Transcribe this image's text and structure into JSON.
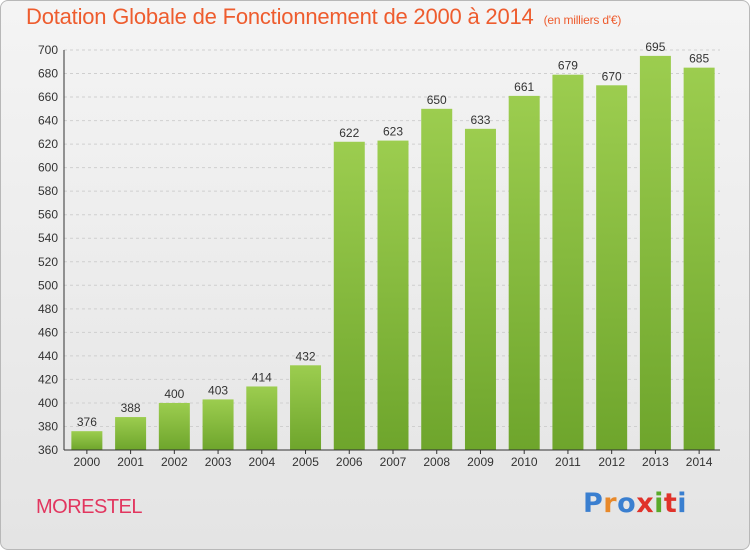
{
  "chart_data": {
    "type": "bar",
    "title": "Dotation Globale de Fonctionnement de 2000 à 2014",
    "subtitle": "(en milliers d'€)",
    "xlabel": "",
    "ylabel": "",
    "categories": [
      "2000",
      "2001",
      "2002",
      "2003",
      "2004",
      "2005",
      "2006",
      "2007",
      "2008",
      "2009",
      "2010",
      "2011",
      "2012",
      "2013",
      "2014"
    ],
    "values": [
      376,
      388,
      400,
      403,
      414,
      432,
      622,
      623,
      650,
      633,
      661,
      679,
      670,
      695,
      685
    ],
    "ylim": [
      360,
      700
    ],
    "yticks": [
      360,
      380,
      400,
      420,
      440,
      460,
      480,
      500,
      520,
      540,
      560,
      580,
      600,
      620,
      640,
      660,
      680,
      700
    ],
    "grid": true,
    "legend": "none"
  },
  "footer": {
    "commune": "MORESTEL",
    "logo_text": "Proxiti",
    "logo_colors": [
      "#3a7fd0",
      "#e8892a",
      "#3a7fd0",
      "#e0322a",
      "#5aaa2a",
      "#e0322a",
      "#3a7fd0"
    ]
  },
  "colors": {
    "title": "#ee5c2e",
    "commune": "#e2365f",
    "bar_top": "#9ccd4f",
    "bar_bottom": "#6ea52c"
  }
}
